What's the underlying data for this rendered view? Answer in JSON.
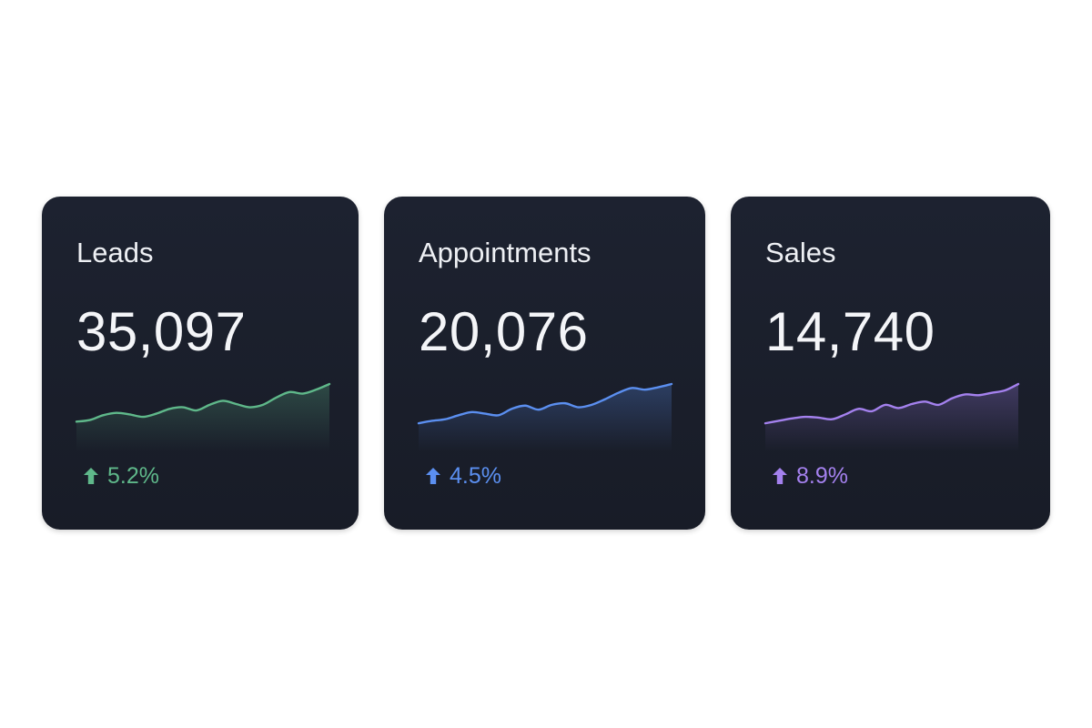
{
  "cards": [
    {
      "title": "Leads",
      "value": "35,097",
      "change": "5.2%",
      "trend": "up",
      "trend_icon": "arrow-up-icon",
      "color": "#5fb88a",
      "series": [
        0.06,
        0.1,
        0.22,
        0.28,
        0.24,
        0.18,
        0.26,
        0.38,
        0.42,
        0.34,
        0.48,
        0.58,
        0.5,
        0.42,
        0.48,
        0.66,
        0.8,
        0.76,
        0.86,
        1.0
      ]
    },
    {
      "title": "Appointments",
      "value": "20,076",
      "change": "4.5%",
      "trend": "up",
      "trend_icon": "arrow-up-icon",
      "color": "#5b8ff0",
      "series": [
        0.02,
        0.08,
        0.12,
        0.22,
        0.3,
        0.26,
        0.22,
        0.38,
        0.46,
        0.36,
        0.48,
        0.52,
        0.42,
        0.48,
        0.62,
        0.78,
        0.9,
        0.86,
        0.92,
        1.0
      ]
    },
    {
      "title": "Sales",
      "value": "14,740",
      "change": "8.9%",
      "trend": "up",
      "trend_icon": "arrow-up-icon",
      "color": "#a481ee",
      "series": [
        0.02,
        0.08,
        0.14,
        0.18,
        0.16,
        0.12,
        0.24,
        0.38,
        0.32,
        0.48,
        0.4,
        0.5,
        0.56,
        0.48,
        0.64,
        0.74,
        0.72,
        0.78,
        0.84,
        1.0
      ]
    }
  ]
}
